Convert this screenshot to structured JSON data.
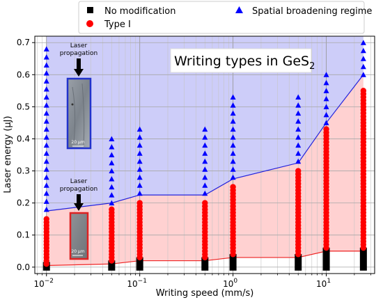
{
  "chart_data": {
    "type": "scatter",
    "title": "",
    "annotation": {
      "text": "Writing types in GeS",
      "subscript": "2"
    },
    "xlabel": "Writing speed (mm/s)",
    "ylabel": "Laser energy (μJ)",
    "x_scale": "log",
    "xlim": [
      0.0075,
      33
    ],
    "ylim": [
      -0.02,
      0.72
    ],
    "x_ticks": [
      {
        "value": 0.01,
        "base": "10",
        "exp": "−2"
      },
      {
        "value": 0.1,
        "base": "10",
        "exp": "−1"
      },
      {
        "value": 1,
        "base": "10",
        "exp": "0"
      },
      {
        "value": 10,
        "base": "10",
        "exp": "1"
      }
    ],
    "y_ticks": [
      "0.0",
      "0.1",
      "0.2",
      "0.3",
      "0.4",
      "0.5",
      "0.6",
      "0.7"
    ],
    "grid": true,
    "legend_position": "top",
    "colors": {
      "no_mod": "#000000",
      "type1": "#ff0000",
      "spatial": "#0000ff",
      "region_low": "#ffcccc",
      "region_high": "#c8c8f8"
    },
    "series": [
      {
        "name": "No modification",
        "marker": "square",
        "color": "#000000",
        "columns": [
          {
            "x": 0.01,
            "ymin": 0.0,
            "ymax": 0.005
          },
          {
            "x": 0.05,
            "ymin": 0.0,
            "ymax": 0.01
          },
          {
            "x": 0.1,
            "ymin": 0.0,
            "ymax": 0.02
          },
          {
            "x": 0.5,
            "ymin": 0.0,
            "ymax": 0.02
          },
          {
            "x": 1,
            "ymin": 0.0,
            "ymax": 0.03
          },
          {
            "x": 5,
            "ymin": 0.0,
            "ymax": 0.03
          },
          {
            "x": 10,
            "ymin": 0.0,
            "ymax": 0.05
          },
          {
            "x": 25,
            "ymin": 0.0,
            "ymax": 0.05
          }
        ]
      },
      {
        "name": "Type I",
        "marker": "circle",
        "color": "#ff0000",
        "columns": [
          {
            "x": 0.01,
            "ymin": 0.01,
            "ymax": 0.15
          },
          {
            "x": 0.05,
            "ymin": 0.02,
            "ymax": 0.18
          },
          {
            "x": 0.1,
            "ymin": 0.03,
            "ymax": 0.2
          },
          {
            "x": 0.5,
            "ymin": 0.03,
            "ymax": 0.2
          },
          {
            "x": 1,
            "ymin": 0.04,
            "ymax": 0.25
          },
          {
            "x": 5,
            "ymin": 0.04,
            "ymax": 0.3
          },
          {
            "x": 10,
            "ymin": 0.06,
            "ymax": 0.43
          },
          {
            "x": 25,
            "ymin": 0.06,
            "ymax": 0.55
          }
        ]
      },
      {
        "name": "Spatial broadening regime",
        "marker": "triangle",
        "color": "#0000ff",
        "columns": [
          {
            "x": 0.01,
            "ymin": 0.18,
            "ymax": 0.7
          },
          {
            "x": 0.05,
            "ymin": 0.2,
            "ymax": 0.4
          },
          {
            "x": 0.1,
            "ymin": 0.23,
            "ymax": 0.45
          },
          {
            "x": 0.5,
            "ymin": 0.23,
            "ymax": 0.45
          },
          {
            "x": 1,
            "ymin": 0.28,
            "ymax": 0.55
          },
          {
            "x": 5,
            "ymin": 0.33,
            "ymax": 0.55
          },
          {
            "x": 10,
            "ymin": 0.45,
            "ymax": 0.6
          },
          {
            "x": 25,
            "ymin": 0.6,
            "ymax": 0.7
          }
        ]
      }
    ],
    "boundaries": {
      "x": [
        0.01,
        0.05,
        0.1,
        0.5,
        1,
        5,
        10,
        25
      ],
      "no_mod_to_type1": [
        0.005,
        0.01,
        0.02,
        0.02,
        0.03,
        0.03,
        0.05,
        0.05
      ],
      "type1_to_spatial": [
        0.175,
        0.2,
        0.225,
        0.225,
        0.275,
        0.325,
        0.45,
        0.6
      ]
    },
    "insets": [
      {
        "label_line1": "Laser",
        "label_line2": "propagation",
        "scale_text": "20 μm",
        "border": "#2233cc"
      },
      {
        "label_line1": "Laser",
        "label_line2": "propagation",
        "scale_text": "20 μm",
        "border": "#dd2222"
      }
    ]
  }
}
